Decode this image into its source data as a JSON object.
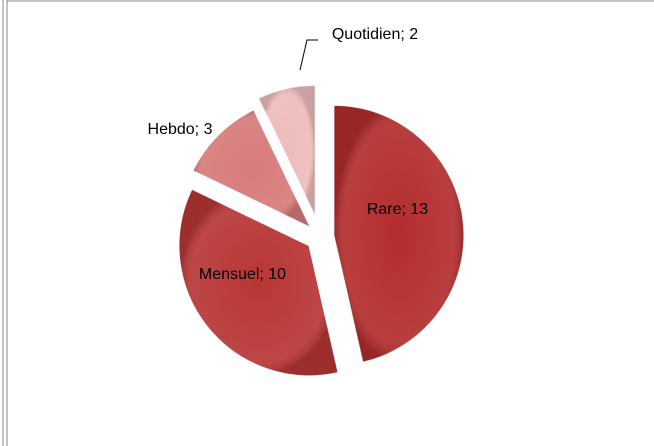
{
  "chart_data": {
    "type": "pie",
    "categories": [
      "Rare",
      "Mensuel",
      "Hebdo",
      "Quotidien"
    ],
    "values": [
      13,
      10,
      3,
      2
    ],
    "value_labels": [
      "Rare; 13",
      "Mensuel; 10",
      "Hebdo; 3",
      "Quotidien; 2"
    ],
    "colors": [
      "#b32d2d",
      "#b83636",
      "#d77b7b",
      "#eebcbc"
    ]
  }
}
